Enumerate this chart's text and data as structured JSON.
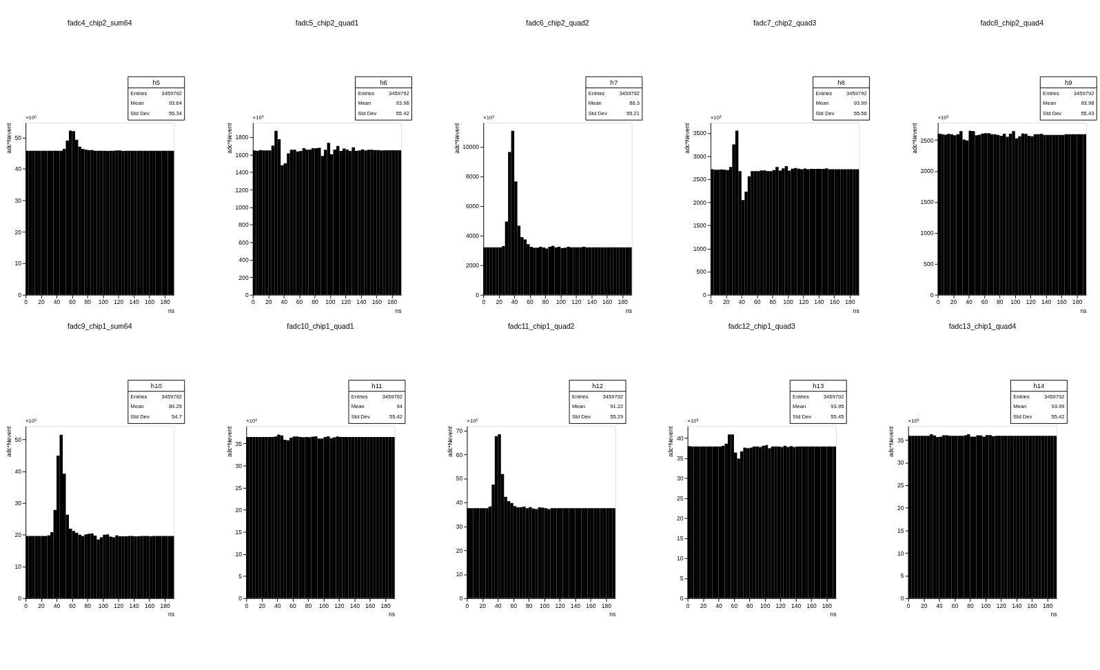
{
  "chart_data": [
    {
      "type": "histogram",
      "title": "fadc4_chip2_sum64",
      "xlabel": "ns",
      "ylabel": "adc*Nevent",
      "color": "#000000",
      "xlim": [
        0,
        192
      ],
      "xticks": [
        0,
        20,
        40,
        60,
        80,
        100,
        120,
        140,
        160,
        180
      ],
      "ylim": [
        0,
        54.7
      ],
      "yticks": [
        0,
        10,
        20,
        30,
        40,
        50
      ],
      "bins": [
        0,
        4,
        8,
        12,
        16,
        20,
        24,
        28,
        32,
        36,
        40,
        44,
        48,
        52,
        56,
        60,
        64,
        68,
        72,
        76,
        80,
        84,
        88,
        92,
        96,
        100,
        104,
        108,
        112,
        116,
        120,
        124,
        128,
        132,
        136,
        140,
        144,
        148,
        152,
        156,
        160,
        164,
        168,
        172,
        176,
        180,
        184,
        188,
        192
      ],
      "values": [
        45.8,
        45.8,
        45.8,
        45.8,
        45.8,
        45.8,
        45.8,
        45.8,
        45.8,
        45.8,
        45.8,
        45.8,
        46.4,
        49.0,
        52.2,
        52.0,
        49.3,
        47.1,
        46.4,
        46.1,
        46.0,
        46.0,
        45.8,
        45.8,
        45.8,
        45.8,
        45.7,
        45.8,
        45.8,
        45.9,
        45.9,
        45.7,
        45.8,
        45.8,
        45.8,
        45.8,
        45.8,
        45.8,
        45.8,
        45.8,
        45.8,
        45.8,
        45.8,
        45.8,
        45.8,
        45.8,
        45.8,
        45.8
      ],
      "annotations": [
        "×10⁶",
        "h5",
        "Entries",
        "3459792",
        "Mean",
        "93.64",
        "Std Dev",
        "55.34"
      ]
    },
    {
      "type": "histogram",
      "title": "fadc5_chip2_quad1",
      "xlabel": "ns",
      "ylabel": "adc*Nevent",
      "color": "#000000",
      "xlim": [
        0,
        192
      ],
      "xticks": [
        0,
        20,
        40,
        60,
        80,
        100,
        120,
        140,
        160,
        180
      ],
      "ylim": [
        0,
        1965
      ],
      "yticks": [
        0,
        200,
        400,
        600,
        800,
        1000,
        1200,
        1400,
        1600,
        1800
      ],
      "bins": [
        0,
        4,
        8,
        12,
        16,
        20,
        24,
        28,
        32,
        36,
        40,
        44,
        48,
        52,
        56,
        60,
        64,
        68,
        72,
        76,
        80,
        84,
        88,
        92,
        96,
        100,
        104,
        108,
        112,
        116,
        120,
        124,
        128,
        132,
        136,
        140,
        144,
        148,
        152,
        156,
        160,
        164,
        168,
        172,
        176,
        180,
        184,
        188,
        192
      ],
      "values": [
        1648,
        1645,
        1652,
        1648,
        1648,
        1648,
        1704,
        1873,
        1777,
        1479,
        1500,
        1615,
        1656,
        1656,
        1637,
        1642,
        1673,
        1658,
        1658,
        1673,
        1673,
        1677,
        1585,
        1656,
        1735,
        1604,
        1658,
        1700,
        1642,
        1669,
        1658,
        1642,
        1683,
        1644,
        1648,
        1660,
        1648,
        1656,
        1656,
        1652,
        1652,
        1648,
        1650,
        1650,
        1650,
        1650,
        1650,
        1650
      ],
      "annotations": [
        "×10³",
        "h6",
        "Entries",
        "3459792",
        "Mean",
        "93.96",
        "Std Dev",
        "55.42"
      ]
    },
    {
      "type": "histogram",
      "title": "fadc6_chip2_quad2",
      "xlabel": "ns",
      "ylabel": "adc*Nevent",
      "color": "#000000",
      "xlim": [
        0,
        192
      ],
      "xticks": [
        0,
        20,
        40,
        60,
        80,
        100,
        120,
        140,
        160,
        180
      ],
      "ylim": [
        0,
        11630
      ],
      "yticks": [
        0,
        2000,
        4000,
        6000,
        8000,
        10000
      ],
      "bins": [
        0,
        4,
        8,
        12,
        16,
        20,
        24,
        28,
        32,
        36,
        40,
        44,
        48,
        52,
        56,
        60,
        64,
        68,
        72,
        76,
        80,
        84,
        88,
        92,
        96,
        100,
        104,
        108,
        112,
        116,
        120,
        124,
        128,
        132,
        136,
        140,
        144,
        148,
        152,
        156,
        160,
        164,
        168,
        172,
        176,
        180,
        184,
        188,
        192
      ],
      "values": [
        3206,
        3206,
        3206,
        3206,
        3206,
        3206,
        3295,
        4950,
        9656,
        11081,
        7659,
        4669,
        3893,
        3740,
        3422,
        3244,
        3181,
        3181,
        3244,
        3193,
        3130,
        3244,
        3308,
        3206,
        3244,
        3155,
        3181,
        3244,
        3210,
        3210,
        3210,
        3210,
        3244,
        3206,
        3206,
        3206,
        3206,
        3206,
        3206,
        3206,
        3206,
        3206,
        3206,
        3206,
        3206,
        3206,
        3206,
        3206
      ],
      "annotations": [
        "×10³",
        "h7",
        "Entries",
        "3459792",
        "Mean",
        "86.3",
        "Std Dev",
        "55.21"
      ]
    },
    {
      "type": "histogram",
      "title": "fadc7_chip2_quad3",
      "xlabel": "ns",
      "ylabel": "adc*Nevent",
      "color": "#000000",
      "xlim": [
        0,
        192
      ],
      "xticks": [
        0,
        20,
        40,
        60,
        80,
        100,
        120,
        140,
        160,
        180
      ],
      "ylim": [
        0,
        3724
      ],
      "yticks": [
        0,
        500,
        1000,
        1500,
        2000,
        2500,
        3000,
        3500
      ],
      "bins": [
        0,
        4,
        8,
        12,
        16,
        20,
        24,
        28,
        32,
        36,
        40,
        44,
        48,
        52,
        56,
        60,
        64,
        68,
        72,
        76,
        80,
        84,
        88,
        92,
        96,
        100,
        104,
        108,
        112,
        116,
        120,
        124,
        128,
        132,
        136,
        140,
        144,
        148,
        152,
        156,
        160,
        164,
        168,
        172,
        176,
        180,
        184,
        188,
        192
      ],
      "values": [
        2719,
        2707,
        2707,
        2715,
        2707,
        2699,
        2764,
        3254,
        3552,
        2675,
        2050,
        2234,
        2564,
        2675,
        2675,
        2675,
        2691,
        2691,
        2675,
        2675,
        2699,
        2764,
        2687,
        2736,
        2785,
        2687,
        2728,
        2744,
        2728,
        2719,
        2732,
        2719,
        2724,
        2724,
        2724,
        2724,
        2724,
        2736,
        2719,
        2719,
        2719,
        2719,
        2719,
        2719,
        2719,
        2719,
        2719,
        2719
      ],
      "annotations": [
        "×10³",
        "h8",
        "Entries",
        "3459792",
        "Mean",
        "93.99",
        "Std Dev",
        "55.56"
      ]
    },
    {
      "type": "histogram",
      "title": "fadc8_chip2_quad4",
      "xlabel": "ns",
      "ylabel": "adc*Nevent",
      "color": "#000000",
      "xlim": [
        0,
        192
      ],
      "xticks": [
        0,
        20,
        40,
        60,
        80,
        100,
        120,
        140,
        160,
        180
      ],
      "ylim": [
        0,
        2781
      ],
      "yticks": [
        0,
        500,
        1000,
        1500,
        2000,
        2500
      ],
      "bins": [
        0,
        4,
        8,
        12,
        16,
        20,
        24,
        28,
        32,
        36,
        40,
        44,
        48,
        52,
        56,
        60,
        64,
        68,
        72,
        76,
        80,
        84,
        88,
        92,
        96,
        100,
        104,
        108,
        112,
        116,
        120,
        124,
        128,
        132,
        136,
        140,
        144,
        148,
        152,
        156,
        160,
        164,
        168,
        172,
        176,
        180,
        184,
        188,
        192
      ],
      "values": [
        2602,
        2594,
        2587,
        2599,
        2594,
        2577,
        2594,
        2644,
        2507,
        2493,
        2651,
        2644,
        2577,
        2587,
        2607,
        2612,
        2612,
        2594,
        2594,
        2582,
        2569,
        2602,
        2552,
        2602,
        2644,
        2527,
        2562,
        2607,
        2599,
        2569,
        2562,
        2594,
        2594,
        2599,
        2582,
        2584,
        2584,
        2584,
        2584,
        2584,
        2584,
        2594,
        2594,
        2594,
        2594,
        2594,
        2594,
        2594
      ],
      "annotations": [
        "×10³",
        "h9",
        "Entries",
        "3459792",
        "Mean",
        "93.98",
        "Std Dev",
        "55.43"
      ]
    },
    {
      "type": "histogram",
      "title": "fadc9_chip1_sum64",
      "xlabel": "ns",
      "ylabel": "adc*Nevent",
      "color": "#000000",
      "xlim": [
        0,
        192
      ],
      "xticks": [
        0,
        20,
        40,
        60,
        80,
        100,
        120,
        140,
        160,
        180
      ],
      "ylim": [
        0,
        54.2
      ],
      "yticks": [
        0,
        10,
        20,
        30,
        40,
        50
      ],
      "bins": [
        0,
        4,
        8,
        12,
        16,
        20,
        24,
        28,
        32,
        36,
        40,
        44,
        48,
        52,
        56,
        60,
        64,
        68,
        72,
        76,
        80,
        84,
        88,
        92,
        96,
        100,
        104,
        108,
        112,
        116,
        120,
        124,
        128,
        132,
        136,
        140,
        144,
        148,
        152,
        156,
        160,
        164,
        168,
        172,
        176,
        180,
        184,
        188,
        192
      ],
      "values": [
        19.6,
        19.6,
        19.6,
        19.6,
        19.6,
        19.6,
        19.6,
        19.8,
        20.8,
        27.8,
        44.9,
        51.5,
        39.2,
        26.3,
        21.9,
        21.2,
        20.6,
        20.0,
        19.6,
        20.1,
        20.3,
        20.4,
        19.7,
        18.5,
        19.2,
        20.0,
        20.1,
        19.4,
        19.2,
        19.8,
        19.5,
        19.5,
        19.5,
        19.6,
        19.6,
        19.5,
        19.5,
        19.6,
        19.6,
        19.6,
        19.5,
        19.6,
        19.6,
        19.6,
        19.6,
        19.6,
        19.6,
        19.6
      ],
      "annotations": [
        "×10⁶",
        "h10",
        "Entries",
        "3459792",
        "Mean",
        "89.25",
        "Std Dev",
        "54.7"
      ]
    },
    {
      "type": "histogram",
      "title": "fadc10_chip1_quad1",
      "xlabel": "ns",
      "ylabel": "adc*Nevent",
      "color": "#000000",
      "xlim": [
        0,
        192
      ],
      "xticks": [
        0,
        20,
        40,
        60,
        80,
        100,
        120,
        140,
        160,
        180
      ],
      "ylim": [
        0,
        38.9
      ],
      "yticks": [
        0,
        5,
        10,
        15,
        20,
        25,
        30,
        35
      ],
      "bins": [
        0,
        4,
        8,
        12,
        16,
        20,
        24,
        28,
        32,
        36,
        40,
        44,
        48,
        52,
        56,
        60,
        64,
        68,
        72,
        76,
        80,
        84,
        88,
        92,
        96,
        100,
        104,
        108,
        112,
        116,
        120,
        124,
        128,
        132,
        136,
        140,
        144,
        148,
        152,
        156,
        160,
        164,
        168,
        172,
        176,
        180,
        184,
        188,
        192
      ],
      "values": [
        36.44,
        36.44,
        36.44,
        36.44,
        36.44,
        36.44,
        36.44,
        36.44,
        36.44,
        36.55,
        37.0,
        36.8,
        35.8,
        35.7,
        36.3,
        36.55,
        36.55,
        36.44,
        36.4,
        36.44,
        36.4,
        36.5,
        36.6,
        36.1,
        36.1,
        36.44,
        36.6,
        36.15,
        36.35,
        36.55,
        36.44,
        36.44,
        36.44,
        36.44,
        36.44,
        36.44,
        36.44,
        36.44,
        36.44,
        36.44,
        36.44,
        36.44,
        36.44,
        36.44,
        36.44,
        36.44,
        36.44,
        36.44
      ],
      "annotations": [
        "×10⁶",
        "h11",
        "Entries",
        "3459792",
        "Mean",
        "94",
        "Std Dev",
        "55.42"
      ]
    },
    {
      "type": "histogram",
      "title": "fadc11_chip1_quad2",
      "xlabel": "ns",
      "ylabel": "adc*Nevent",
      "color": "#000000",
      "xlim": [
        0,
        192
      ],
      "xticks": [
        0,
        20,
        40,
        60,
        80,
        100,
        120,
        140,
        160,
        180
      ],
      "ylim": [
        0,
        71.8
      ],
      "yticks": [
        0,
        10,
        20,
        30,
        40,
        50,
        60,
        70
      ],
      "bins": [
        0,
        4,
        8,
        12,
        16,
        20,
        24,
        28,
        32,
        36,
        40,
        44,
        48,
        52,
        56,
        60,
        64,
        68,
        72,
        76,
        80,
        84,
        88,
        92,
        96,
        100,
        104,
        108,
        112,
        116,
        120,
        124,
        128,
        132,
        136,
        140,
        144,
        148,
        152,
        156,
        160,
        164,
        168,
        172,
        176,
        180,
        184,
        188,
        192
      ],
      "values": [
        37.55,
        37.55,
        37.55,
        37.55,
        37.55,
        37.55,
        37.55,
        38.3,
        47.4,
        67.6,
        68.4,
        51.8,
        42.3,
        40.5,
        39.7,
        38.4,
        37.9,
        38.0,
        38.2,
        37.6,
        38.0,
        37.4,
        37.2,
        37.9,
        37.8,
        37.55,
        37.2,
        37.55,
        37.55,
        37.55,
        37.55,
        37.55,
        37.55,
        37.55,
        37.55,
        37.55,
        37.55,
        37.55,
        37.55,
        37.55,
        37.55,
        37.55,
        37.55,
        37.55,
        37.55,
        37.55,
        37.55,
        37.55
      ],
      "annotations": [
        "×10⁶",
        "h12",
        "Entries",
        "3459792",
        "Mean",
        "91.22",
        "Std Dev",
        "55.29"
      ]
    },
    {
      "type": "histogram",
      "title": "fadc12_chip1_quad3",
      "xlabel": "ns",
      "ylabel": "adc*Nevent",
      "color": "#000000",
      "xlim": [
        0,
        192
      ],
      "xticks": [
        0,
        20,
        40,
        60,
        80,
        100,
        120,
        140,
        160,
        180
      ],
      "ylim": [
        0,
        43
      ],
      "yticks": [
        0,
        5,
        10,
        15,
        20,
        25,
        30,
        35,
        40
      ],
      "bins": [
        0,
        4,
        8,
        12,
        16,
        20,
        24,
        28,
        32,
        36,
        40,
        44,
        48,
        52,
        56,
        60,
        64,
        68,
        72,
        76,
        80,
        84,
        88,
        92,
        96,
        100,
        104,
        108,
        112,
        116,
        120,
        124,
        128,
        132,
        136,
        140,
        144,
        148,
        152,
        156,
        160,
        164,
        168,
        172,
        176,
        180,
        184,
        188,
        192
      ],
      "values": [
        38.0,
        37.93,
        37.93,
        37.93,
        37.93,
        37.93,
        37.93,
        37.93,
        37.93,
        37.93,
        37.93,
        38.07,
        38.6,
        40.94,
        40.94,
        36.4,
        34.9,
        36.7,
        37.6,
        37.5,
        37.6,
        37.93,
        37.93,
        37.8,
        38.07,
        38.26,
        37.5,
        37.93,
        37.93,
        37.93,
        37.8,
        38.07,
        37.8,
        38.0,
        37.8,
        37.93,
        37.93,
        37.93,
        37.93,
        37.93,
        37.93,
        37.93,
        37.93,
        37.93,
        37.93,
        37.93,
        37.93,
        37.93
      ],
      "annotations": [
        "×10⁶",
        "h13",
        "Entries",
        "3459792",
        "Mean",
        "93.95",
        "Std Dev",
        "55.45"
      ]
    },
    {
      "type": "histogram",
      "title": "fadc13_chip1_quad4",
      "xlabel": "ns",
      "ylabel": "adc*Nevent",
      "color": "#000000",
      "xlim": [
        0,
        192
      ],
      "xticks": [
        0,
        20,
        40,
        60,
        80,
        100,
        120,
        140,
        160,
        180
      ],
      "ylim": [
        0,
        38.07
      ],
      "yticks": [
        0,
        5,
        10,
        15,
        20,
        25,
        30,
        35
      ],
      "bins": [
        0,
        4,
        8,
        12,
        16,
        20,
        24,
        28,
        32,
        36,
        40,
        44,
        48,
        52,
        56,
        60,
        64,
        68,
        72,
        76,
        80,
        84,
        88,
        92,
        96,
        100,
        104,
        108,
        112,
        116,
        120,
        124,
        128,
        132,
        136,
        140,
        144,
        148,
        152,
        156,
        160,
        164,
        168,
        172,
        176,
        180,
        184,
        188,
        192
      ],
      "values": [
        35.92,
        35.92,
        35.92,
        35.92,
        35.92,
        35.92,
        35.92,
        36.26,
        36.0,
        35.65,
        35.75,
        36.06,
        36.06,
        35.92,
        35.92,
        35.92,
        35.92,
        35.92,
        36.06,
        36.26,
        35.75,
        35.75,
        36.06,
        35.99,
        35.75,
        36.09,
        36.09,
        35.85,
        35.92,
        35.92,
        35.92,
        35.92,
        35.92,
        35.92,
        35.92,
        35.92,
        35.92,
        35.92,
        35.92,
        35.92,
        35.92,
        35.92,
        35.92,
        35.92,
        35.92,
        35.92,
        35.92,
        35.92
      ],
      "annotations": [
        "×10⁶",
        "h14",
        "Entries",
        "3459792",
        "Mean",
        "93.99",
        "Std Dev",
        "55.42"
      ]
    }
  ]
}
